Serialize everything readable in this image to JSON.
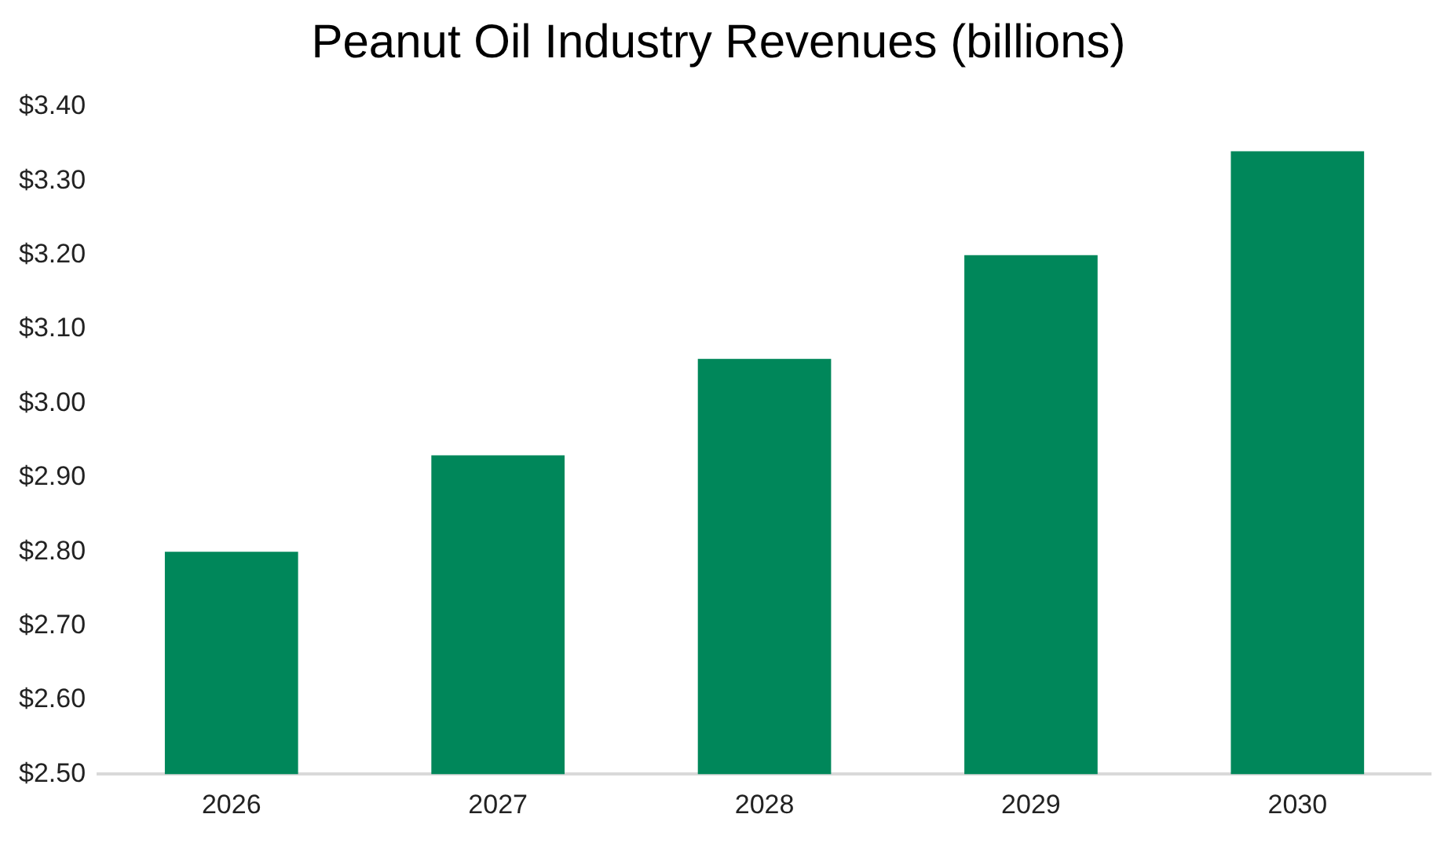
{
  "chart_data": {
    "type": "bar",
    "title": "Peanut Oil Industry Revenues (billions)",
    "categories": [
      "2026",
      "2027",
      "2028",
      "2029",
      "2030"
    ],
    "values": [
      2.8,
      2.93,
      3.06,
      3.2,
      3.34
    ],
    "color": "#00875a",
    "ylim": [
      2.5,
      3.4
    ],
    "yticks": [
      {
        "value": 2.5,
        "label": "$2.50"
      },
      {
        "value": 2.6,
        "label": "$2.60"
      },
      {
        "value": 2.7,
        "label": "$2.70"
      },
      {
        "value": 2.8,
        "label": "$2.80"
      },
      {
        "value": 2.9,
        "label": "$2.90"
      },
      {
        "value": 3.0,
        "label": "$3.00"
      },
      {
        "value": 3.1,
        "label": "$3.10"
      },
      {
        "value": 3.2,
        "label": "$3.20"
      },
      {
        "value": 3.3,
        "label": "$3.30"
      },
      {
        "value": 3.4,
        "label": "$3.40"
      }
    ],
    "grid": false,
    "legend": false
  }
}
